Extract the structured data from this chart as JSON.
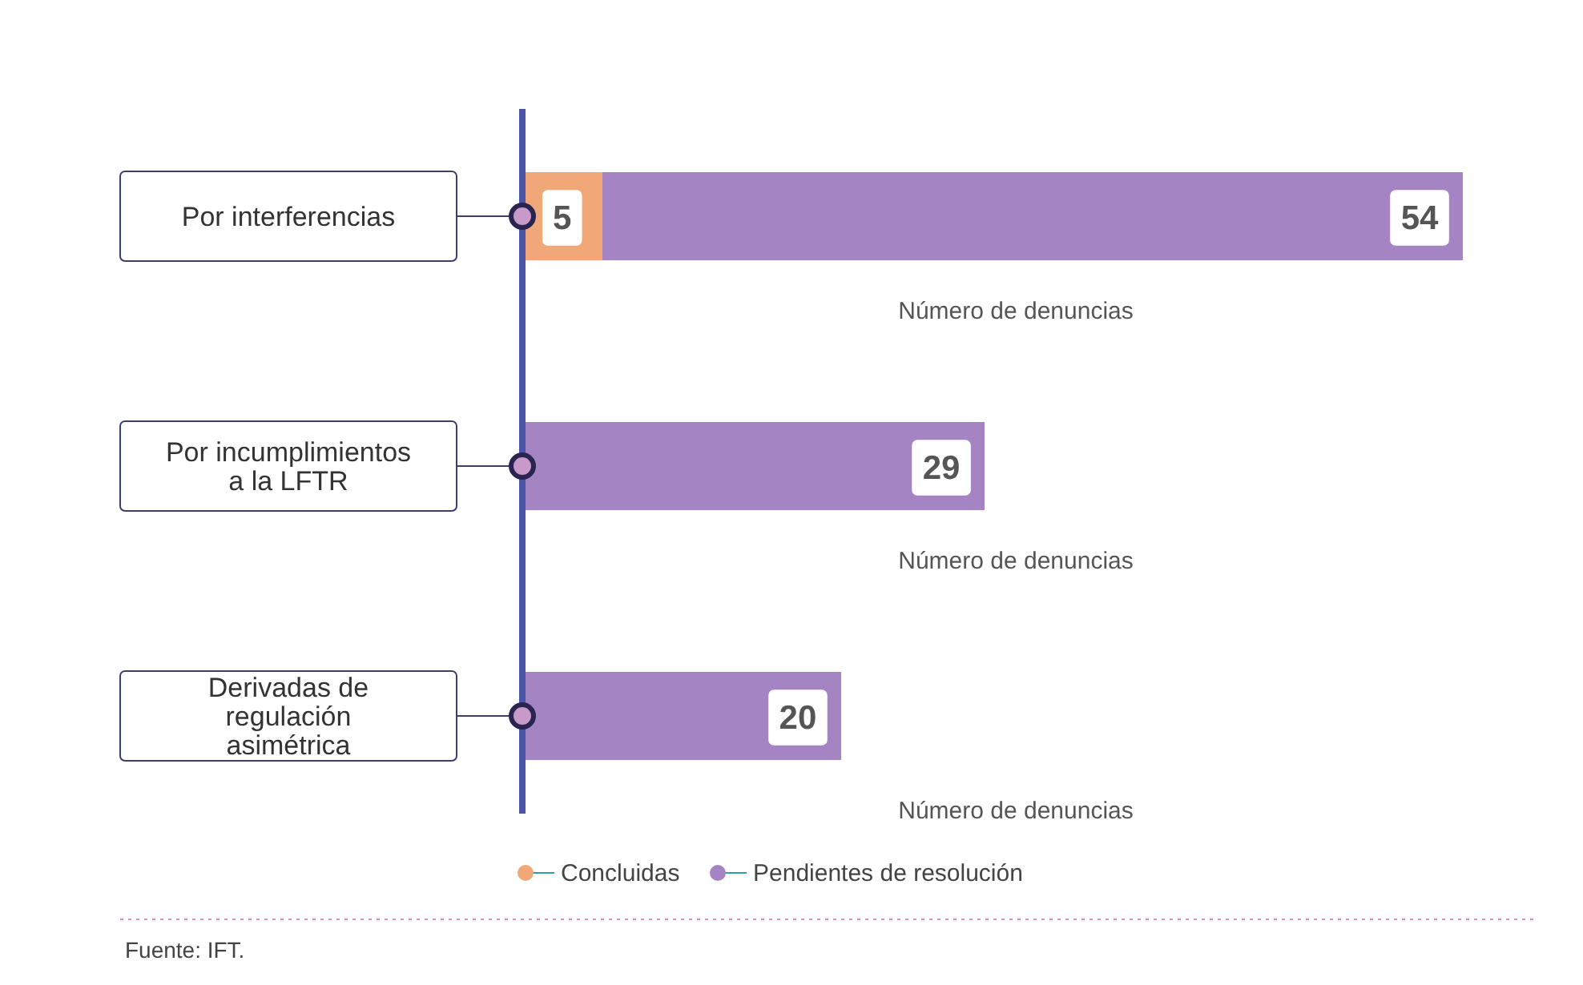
{
  "chart_data": {
    "type": "bar",
    "orientation": "horizontal",
    "stacked": true,
    "categories": [
      "Por interferencias",
      "Por incumplimientos a la LFTR",
      "Derivadas de regulación asimétrica"
    ],
    "series": [
      {
        "name": "Concluidas",
        "color": "#f0a878",
        "values": [
          5,
          null,
          null
        ],
        "value_labels": [
          "5",
          null,
          null
        ]
      },
      {
        "name": "Pendientes de resolución",
        "color": "#a584c4",
        "values": [
          54,
          29,
          20
        ],
        "value_labels": [
          "54",
          "29",
          "20"
        ]
      }
    ],
    "tick_labels": "y",
    "xlabel": "Número de denuncias",
    "legend": "bottom",
    "annotations": [
      "Fuente: IFT."
    ]
  }
}
